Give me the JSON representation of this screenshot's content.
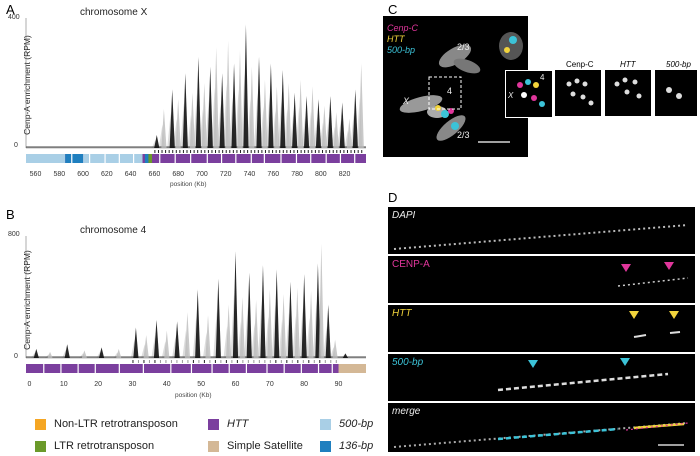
{
  "panels": {
    "A": {
      "letter": "A",
      "title": "chromosome X",
      "ylabel": "Cenp-A enrichment (RPM)",
      "xlabel": "position (Kb)"
    },
    "B": {
      "letter": "B",
      "title": "chromosome 4",
      "ylabel": "Cenp-A enrichment (RPM)",
      "xlabel": "position (Kb)"
    },
    "C": {
      "letter": "C",
      "legend": [
        "Cenp-C",
        "HTT",
        "500-bp"
      ],
      "chrom_labels": [
        "2/3",
        "X",
        "4",
        "2/3"
      ],
      "inset_titles": [
        "Cenp-C",
        "HTT",
        "500-bp"
      ],
      "inset_labels": [
        "4",
        "X"
      ]
    },
    "D": {
      "letter": "D",
      "channels": [
        "DAPI",
        "CENP-A",
        "HTT",
        "500-bp",
        "merge"
      ]
    }
  },
  "legend": {
    "items": [
      {
        "label": "Non-LTR retrotransposon",
        "color": "#f5a623"
      },
      {
        "label": "LTR retrotransposon",
        "color": "#6b9a2a"
      },
      {
        "label": "HTT",
        "color": "#7b3f9e",
        "italic": true
      },
      {
        "label": "Simple Satellite",
        "color": "#d4b896"
      },
      {
        "label": "500-bp",
        "color": "#a9cfe6",
        "italic": true
      },
      {
        "label": "136-bp",
        "color": "#1f7fbf",
        "italic": true
      }
    ]
  },
  "chart_data": [
    {
      "type": "area",
      "title": "chromosome X",
      "ylabel": "Cenp-A enrichment (RPM)",
      "xlabel": "position (Kb)",
      "xlim": [
        552,
        838
      ],
      "ylim": [
        0,
        400
      ],
      "yticks": [
        0,
        400
      ],
      "xticks": [
        560,
        580,
        600,
        620,
        640,
        660,
        680,
        700,
        720,
        740,
        760,
        780,
        800,
        820
      ],
      "peaks": [
        {
          "x": 662,
          "y": 40
        },
        {
          "x": 668,
          "y": 120
        },
        {
          "x": 675,
          "y": 180
        },
        {
          "x": 680,
          "y": 150
        },
        {
          "x": 686,
          "y": 230
        },
        {
          "x": 692,
          "y": 170
        },
        {
          "x": 697,
          "y": 280
        },
        {
          "x": 702,
          "y": 200
        },
        {
          "x": 707,
          "y": 250
        },
        {
          "x": 712,
          "y": 310
        },
        {
          "x": 717,
          "y": 230
        },
        {
          "x": 722,
          "y": 330
        },
        {
          "x": 727,
          "y": 260
        },
        {
          "x": 732,
          "y": 300
        },
        {
          "x": 737,
          "y": 380
        },
        {
          "x": 742,
          "y": 250
        },
        {
          "x": 748,
          "y": 280
        },
        {
          "x": 753,
          "y": 210
        },
        {
          "x": 758,
          "y": 260
        },
        {
          "x": 763,
          "y": 190
        },
        {
          "x": 768,
          "y": 240
        },
        {
          "x": 773,
          "y": 200
        },
        {
          "x": 778,
          "y": 170
        },
        {
          "x": 783,
          "y": 210
        },
        {
          "x": 788,
          "y": 160
        },
        {
          "x": 793,
          "y": 190
        },
        {
          "x": 798,
          "y": 150
        },
        {
          "x": 803,
          "y": 130
        },
        {
          "x": 808,
          "y": 160
        },
        {
          "x": 813,
          "y": 110
        },
        {
          "x": 818,
          "y": 140
        },
        {
          "x": 824,
          "y": 90
        },
        {
          "x": 829,
          "y": 180
        },
        {
          "x": 834,
          "y": 260
        }
      ]
    },
    {
      "type": "area",
      "title": "chromosome 4",
      "ylabel": "Cenp-A enrichment (RPM)",
      "xlabel": "position (Kb)",
      "xlim": [
        -1,
        98
      ],
      "ylim": [
        0,
        800
      ],
      "yticks": [
        0,
        800
      ],
      "xticks": [
        0,
        10,
        20,
        30,
        40,
        50,
        60,
        70,
        80,
        90
      ],
      "peaks": [
        {
          "x": 2,
          "y": 60
        },
        {
          "x": 6,
          "y": 40
        },
        {
          "x": 11,
          "y": 90
        },
        {
          "x": 16,
          "y": 50
        },
        {
          "x": 21,
          "y": 70
        },
        {
          "x": 26,
          "y": 60
        },
        {
          "x": 31,
          "y": 200
        },
        {
          "x": 34,
          "y": 150
        },
        {
          "x": 37,
          "y": 250
        },
        {
          "x": 40,
          "y": 180
        },
        {
          "x": 43,
          "y": 240
        },
        {
          "x": 46,
          "y": 300
        },
        {
          "x": 49,
          "y": 450
        },
        {
          "x": 52,
          "y": 280
        },
        {
          "x": 55,
          "y": 520
        },
        {
          "x": 58,
          "y": 350
        },
        {
          "x": 60,
          "y": 700
        },
        {
          "x": 62,
          "y": 400
        },
        {
          "x": 64,
          "y": 560
        },
        {
          "x": 66,
          "y": 380
        },
        {
          "x": 68,
          "y": 610
        },
        {
          "x": 70,
          "y": 450
        },
        {
          "x": 72,
          "y": 580
        },
        {
          "x": 74,
          "y": 420
        },
        {
          "x": 76,
          "y": 500
        },
        {
          "x": 78,
          "y": 460
        },
        {
          "x": 80,
          "y": 550
        },
        {
          "x": 82,
          "y": 440
        },
        {
          "x": 84,
          "y": 620
        },
        {
          "x": 85,
          "y": 750
        },
        {
          "x": 87,
          "y": 350
        },
        {
          "x": 89,
          "y": 120
        },
        {
          "x": 92,
          "y": 30
        }
      ]
    }
  ]
}
